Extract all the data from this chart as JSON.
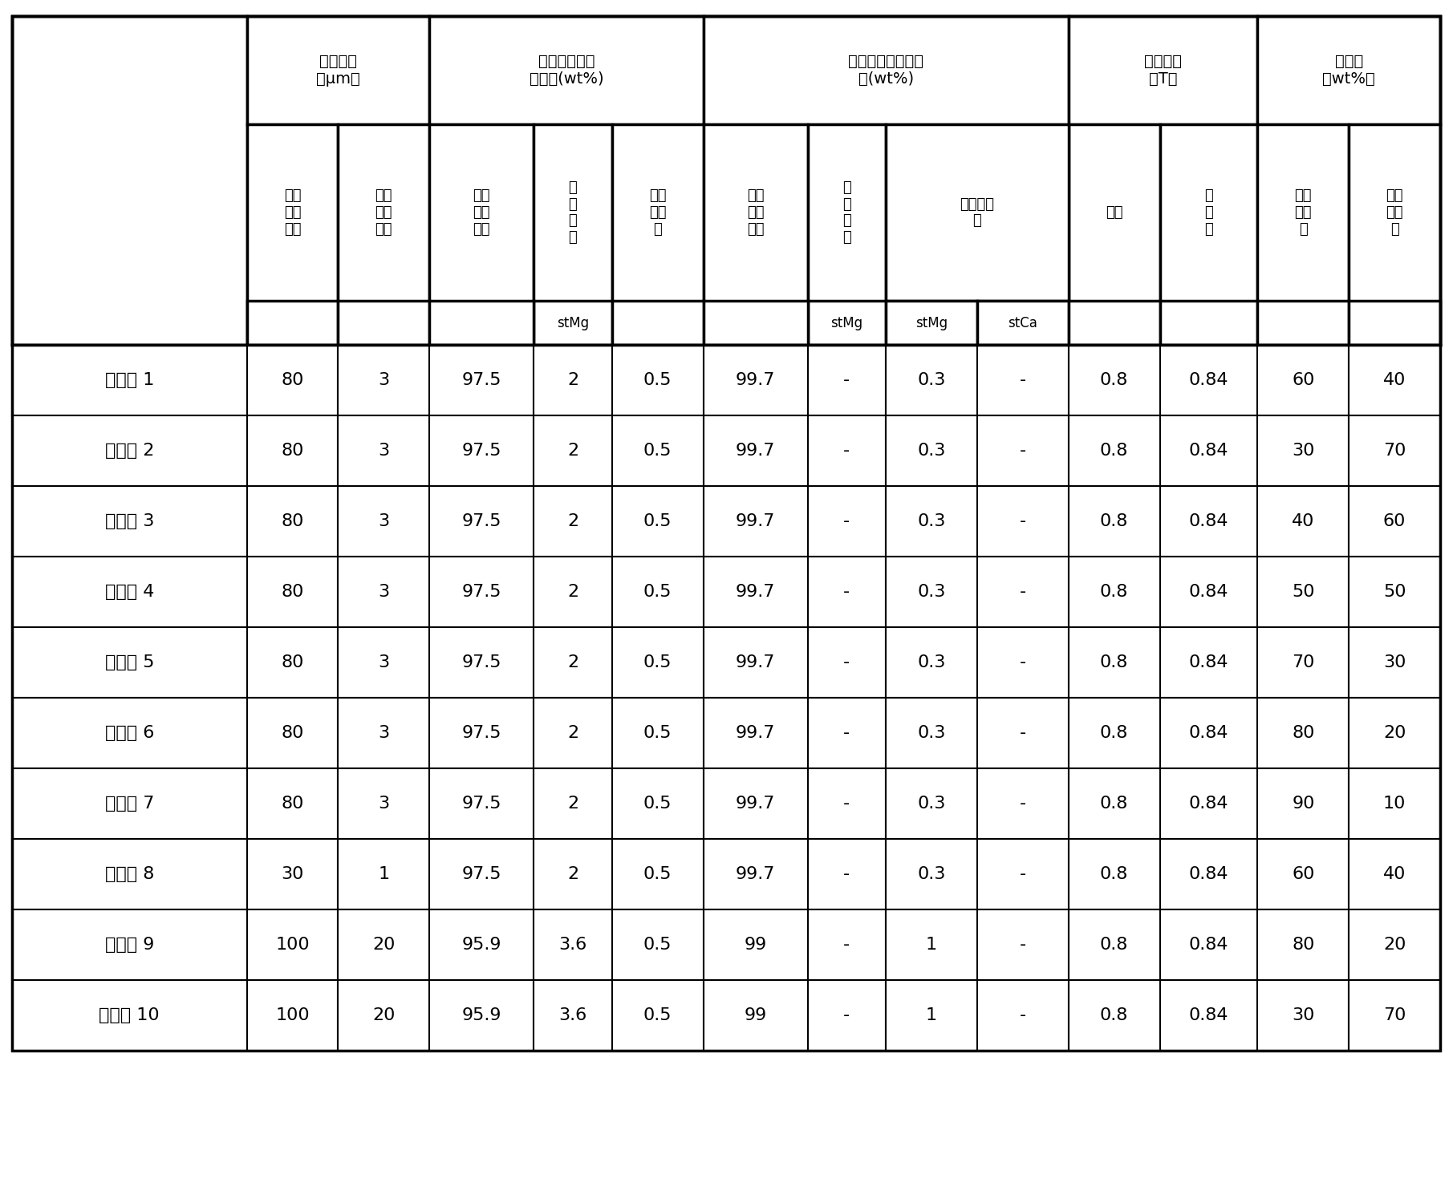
{
  "title": "",
  "background_color": "#ffffff",
  "header_rows": {
    "row0": {
      "cols": [
        {
          "text": "",
          "colspan": 1,
          "rowspan": 2
        },
        {
          "text": "平均粒径\n（μm）",
          "colspan": 2,
          "rowspan": 1
        },
        {
          "text": "第一混合物的添加量(wt%)",
          "colspan": 3,
          "rowspan": 1
        },
        {
          "text": "第二混合物的添加量(wt%)",
          "colspan": 4,
          "rowspan": 1
        },
        {
          "text": "磁场强度\n（T）",
          "colspan": 2,
          "rowspan": 1
        },
        {
          "text": "混合比\n（wt%）",
          "colspan": 2,
          "rowspan": 1
        }
      ]
    },
    "row1": {
      "cols": [
        {
          "text": "第一\n磁性\n粉末",
          "colspan": 1
        },
        {
          "text": "第二\n磁性\n粉末",
          "colspan": 1
        },
        {
          "text": "第一\n磁性\n粉末",
          "colspan": 1
        },
        {
          "text": "环\n氧\n树\n脂",
          "colspan": 1
        },
        {
          "text": "第一\n添加\n剂",
          "colspan": 1
        },
        {
          "text": "第二\n磁性\n粉末",
          "colspan": 1
        },
        {
          "text": "环\n氧\n树\n脂",
          "colspan": 1
        },
        {
          "text": "第二添加剂",
          "colspan": 2
        },
        {
          "text": "端部",
          "colspan": 1
        },
        {
          "text": "中\n心\n部",
          "colspan": 1
        },
        {
          "text": "第一\n混合\n物",
          "colspan": 1
        },
        {
          "text": "第二\n混合\n物",
          "colspan": 1
        }
      ]
    },
    "row2": {
      "cols": [
        {
          "text": "stMg",
          "colspan": 1,
          "col_index": 4
        },
        {
          "text": "stMg",
          "colspan": 1,
          "col_index": 7
        },
        {
          "text": "stCa",
          "colspan": 1,
          "col_index": 8
        }
      ]
    }
  },
  "data_rows": [
    [
      "实施例 1",
      "80",
      "3",
      "97.5",
      "2",
      "0.5",
      "99.7",
      "-",
      "0.3",
      "-",
      "0.8",
      "0.84",
      "60",
      "40"
    ],
    [
      "实施例 2",
      "80",
      "3",
      "97.5",
      "2",
      "0.5",
      "99.7",
      "-",
      "0.3",
      "-",
      "0.8",
      "0.84",
      "30",
      "70"
    ],
    [
      "实施例 3",
      "80",
      "3",
      "97.5",
      "2",
      "0.5",
      "99.7",
      "-",
      "0.3",
      "-",
      "0.8",
      "0.84",
      "40",
      "60"
    ],
    [
      "实施例 4",
      "80",
      "3",
      "97.5",
      "2",
      "0.5",
      "99.7",
      "-",
      "0.3",
      "-",
      "0.8",
      "0.84",
      "50",
      "50"
    ],
    [
      "实施例 5",
      "80",
      "3",
      "97.5",
      "2",
      "0.5",
      "99.7",
      "-",
      "0.3",
      "-",
      "0.8",
      "0.84",
      "70",
      "30"
    ],
    [
      "实施例 6",
      "80",
      "3",
      "97.5",
      "2",
      "0.5",
      "99.7",
      "-",
      "0.3",
      "-",
      "0.8",
      "0.84",
      "80",
      "20"
    ],
    [
      "实施例 7",
      "80",
      "3",
      "97.5",
      "2",
      "0.5",
      "99.7",
      "-",
      "0.3",
      "-",
      "0.8",
      "0.84",
      "90",
      "10"
    ],
    [
      "实施例 8",
      "30",
      "1",
      "97.5",
      "2",
      "0.5",
      "99.7",
      "-",
      "0.3",
      "-",
      "0.8",
      "0.84",
      "60",
      "40"
    ],
    [
      "实施例 9",
      "100",
      "20",
      "95.9",
      "3.6",
      "0.5",
      "99",
      "-",
      "1",
      "-",
      "0.8",
      "0.84",
      "80",
      "20"
    ],
    [
      "实施例 10",
      "100",
      "20",
      "95.9",
      "3.6",
      "0.5",
      "99",
      "-",
      "1",
      "-",
      "0.8",
      "0.84",
      "30",
      "70"
    ]
  ],
  "col_widths": [
    1.8,
    0.7,
    0.7,
    0.8,
    0.6,
    0.7,
    0.8,
    0.6,
    0.7,
    0.7,
    0.7,
    0.75,
    0.7,
    0.7
  ],
  "font_size_header": 14,
  "font_size_data": 16,
  "font_size_subheader": 13
}
